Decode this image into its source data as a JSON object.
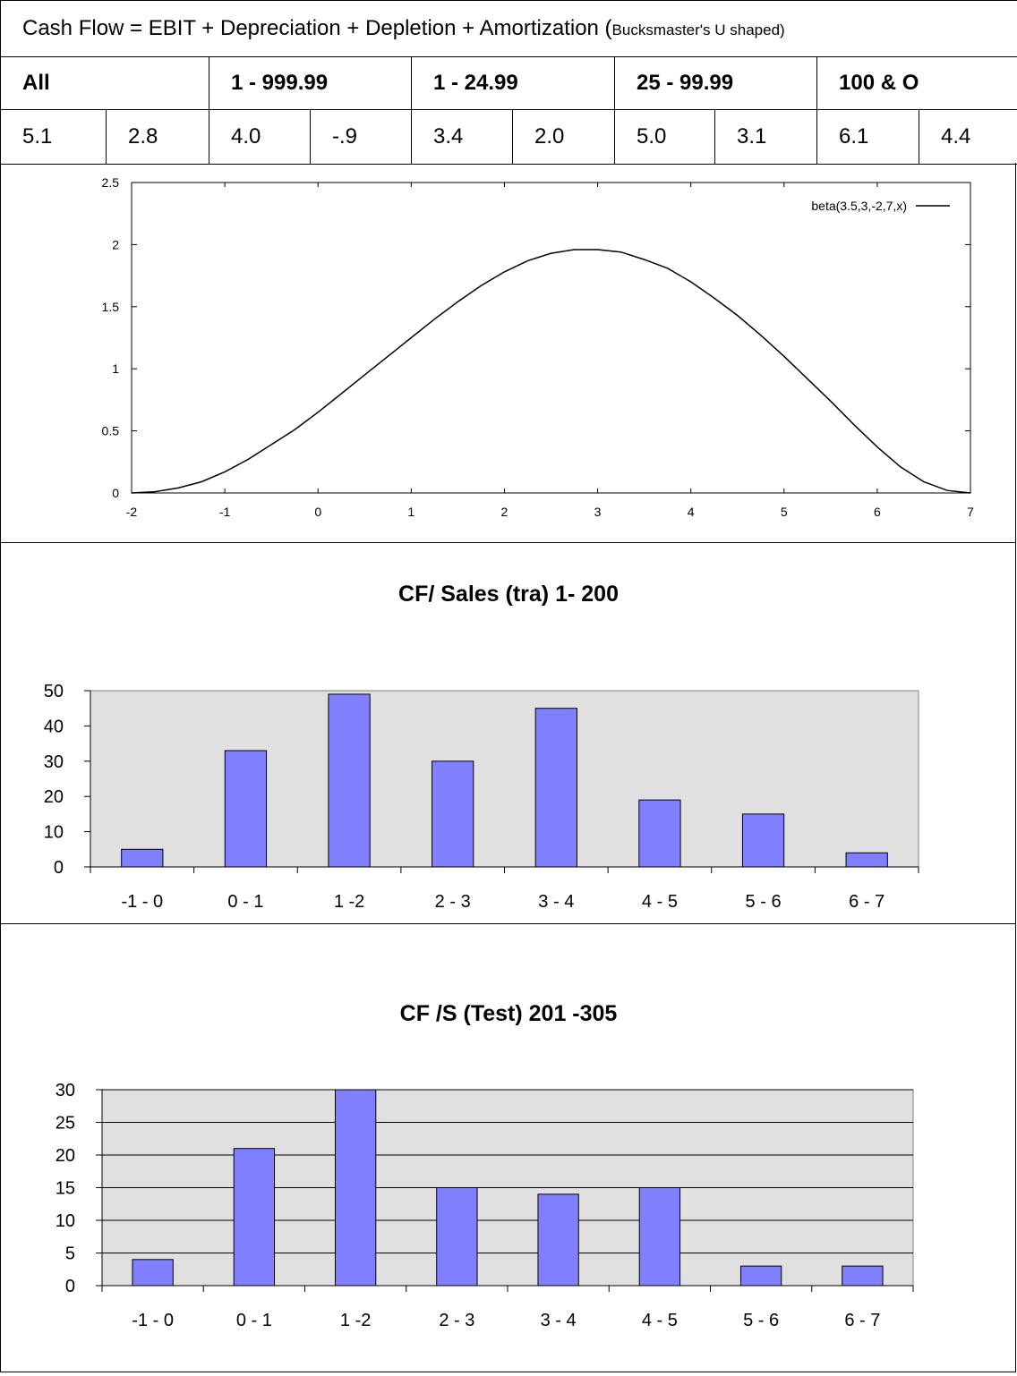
{
  "header": {
    "title_main": "Cash Flow = EBIT + Depreciation + Depletion + Amortization (",
    "title_small": "Bucksmaster's U shaped)",
    "groups": [
      "All",
      "1 - 999.99",
      "1 - 24.99",
      "25 - 99.99",
      "100 & O"
    ],
    "values": [
      "5.1",
      "2.8",
      "4.0",
      "-.9",
      "3.4",
      "2.0",
      "5.0",
      "3.1",
      "6.1",
      "4.4"
    ]
  },
  "chart_data": [
    {
      "type": "line",
      "title": "",
      "legend": "beta(3.5,3,-2,7,x)",
      "legend_position": "top-right",
      "xlim": [
        -2,
        7
      ],
      "ylim": [
        0,
        2.5
      ],
      "xticks": [
        "-2",
        "-1",
        "0",
        "1",
        "2",
        "3",
        "4",
        "5",
        "6",
        "7"
      ],
      "yticks": [
        "0",
        "0.5",
        "1",
        "1.5",
        "2",
        "2.5"
      ],
      "x": [
        -2,
        -1.75,
        -1.5,
        -1.25,
        -1,
        -0.75,
        -0.5,
        -0.25,
        0,
        0.25,
        0.5,
        0.75,
        1,
        1.25,
        1.5,
        1.75,
        2,
        2.25,
        2.5,
        2.75,
        3,
        3.25,
        3.5,
        3.75,
        4,
        4.25,
        4.5,
        4.75,
        5,
        5.25,
        5.5,
        5.75,
        6,
        6.25,
        6.5,
        6.75,
        7
      ],
      "y": [
        0,
        0.01,
        0.04,
        0.09,
        0.17,
        0.27,
        0.39,
        0.51,
        0.65,
        0.8,
        0.95,
        1.1,
        1.25,
        1.4,
        1.54,
        1.67,
        1.78,
        1.87,
        1.93,
        1.96,
        1.96,
        1.94,
        1.88,
        1.81,
        1.7,
        1.57,
        1.43,
        1.27,
        1.1,
        0.92,
        0.74,
        0.55,
        0.37,
        0.21,
        0.09,
        0.02,
        0
      ]
    },
    {
      "type": "bar",
      "title": "CF/ Sales (tra) 1- 200",
      "categories": [
        "-1 - 0",
        "0 - 1",
        "1 -2",
        "2 - 3",
        "3 - 4",
        "4 - 5",
        "5 - 6",
        "6 - 7"
      ],
      "values": [
        5,
        33,
        49,
        30,
        45,
        19,
        15,
        4
      ],
      "ylim": [
        0,
        50
      ],
      "yticks": [
        "0",
        "10",
        "20",
        "30",
        "40",
        "50"
      ],
      "grid": false
    },
    {
      "type": "bar",
      "title": "CF /S (Test) 201 -305",
      "categories": [
        "-1 - 0",
        "0 - 1",
        "1 -2",
        "2 - 3",
        "3 - 4",
        "4 - 5",
        "5 - 6",
        "6 - 7"
      ],
      "values": [
        4,
        21,
        30,
        15,
        14,
        15,
        3,
        3
      ],
      "ylim": [
        0,
        30
      ],
      "yticks": [
        "0",
        "5",
        "10",
        "15",
        "20",
        "25",
        "30"
      ],
      "grid": true
    }
  ],
  "colors": {
    "bar_fill": "#8080ff",
    "plot_bg": "#e0e0e0",
    "line": "#000000"
  }
}
